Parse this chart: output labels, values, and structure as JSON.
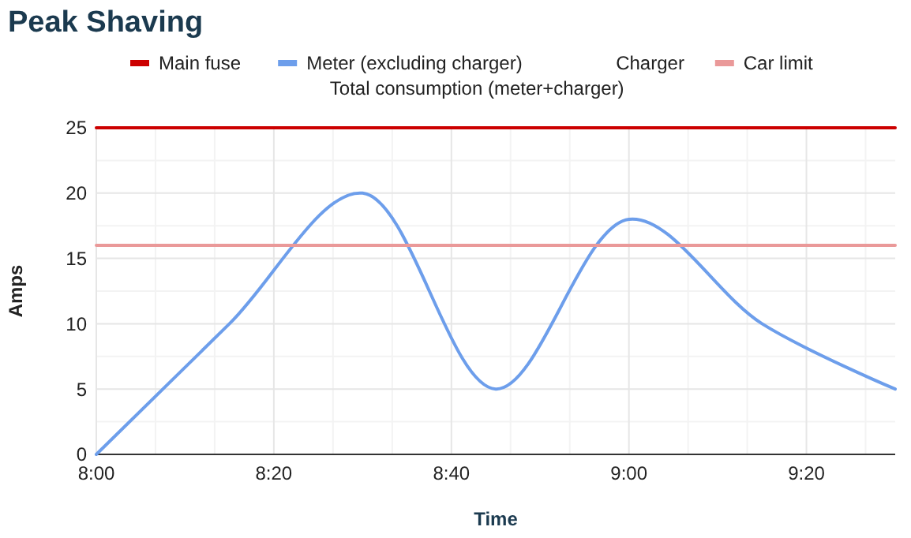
{
  "chart_data": {
    "type": "line",
    "title": "Peak Shaving",
    "xlabel": "Time",
    "ylabel": "Amps",
    "x": [
      8,
      8.25,
      8.5,
      8.75,
      9,
      9.25,
      9.5
    ],
    "series": [
      {
        "name": "Main fuse",
        "color": "#cc0000",
        "values": [
          25,
          25,
          25,
          25,
          25,
          25,
          25
        ]
      },
      {
        "name": "Meter (excluding charger)",
        "color": "#6d9eeb",
        "values": [
          0,
          10,
          20,
          5,
          18,
          10,
          5
        ]
      },
      {
        "name": "Charger",
        "values": [
          null,
          null,
          null,
          null,
          null,
          null,
          null
        ]
      },
      {
        "name": "Car limit",
        "color": "#ea9999",
        "values": [
          16,
          16,
          16,
          16,
          16,
          16,
          16
        ]
      },
      {
        "name": "Total consumption (meter+charger)",
        "values": [
          null,
          null,
          null,
          null,
          null,
          null,
          null
        ]
      }
    ],
    "xlim": [
      8,
      9.5
    ],
    "xticks": [
      {
        "value": 8,
        "label": "8:00"
      },
      {
        "value": 8.3333,
        "label": "8:20"
      },
      {
        "value": 8.6667,
        "label": "8:40"
      },
      {
        "value": 9,
        "label": "9:00"
      },
      {
        "value": 9.3333,
        "label": "9:20"
      }
    ],
    "ylim": [
      0,
      25
    ],
    "yticks": [
      0,
      5,
      10,
      15,
      20,
      25
    ],
    "grid": true,
    "legend": "top",
    "marker": "none",
    "line_style": "solid"
  }
}
